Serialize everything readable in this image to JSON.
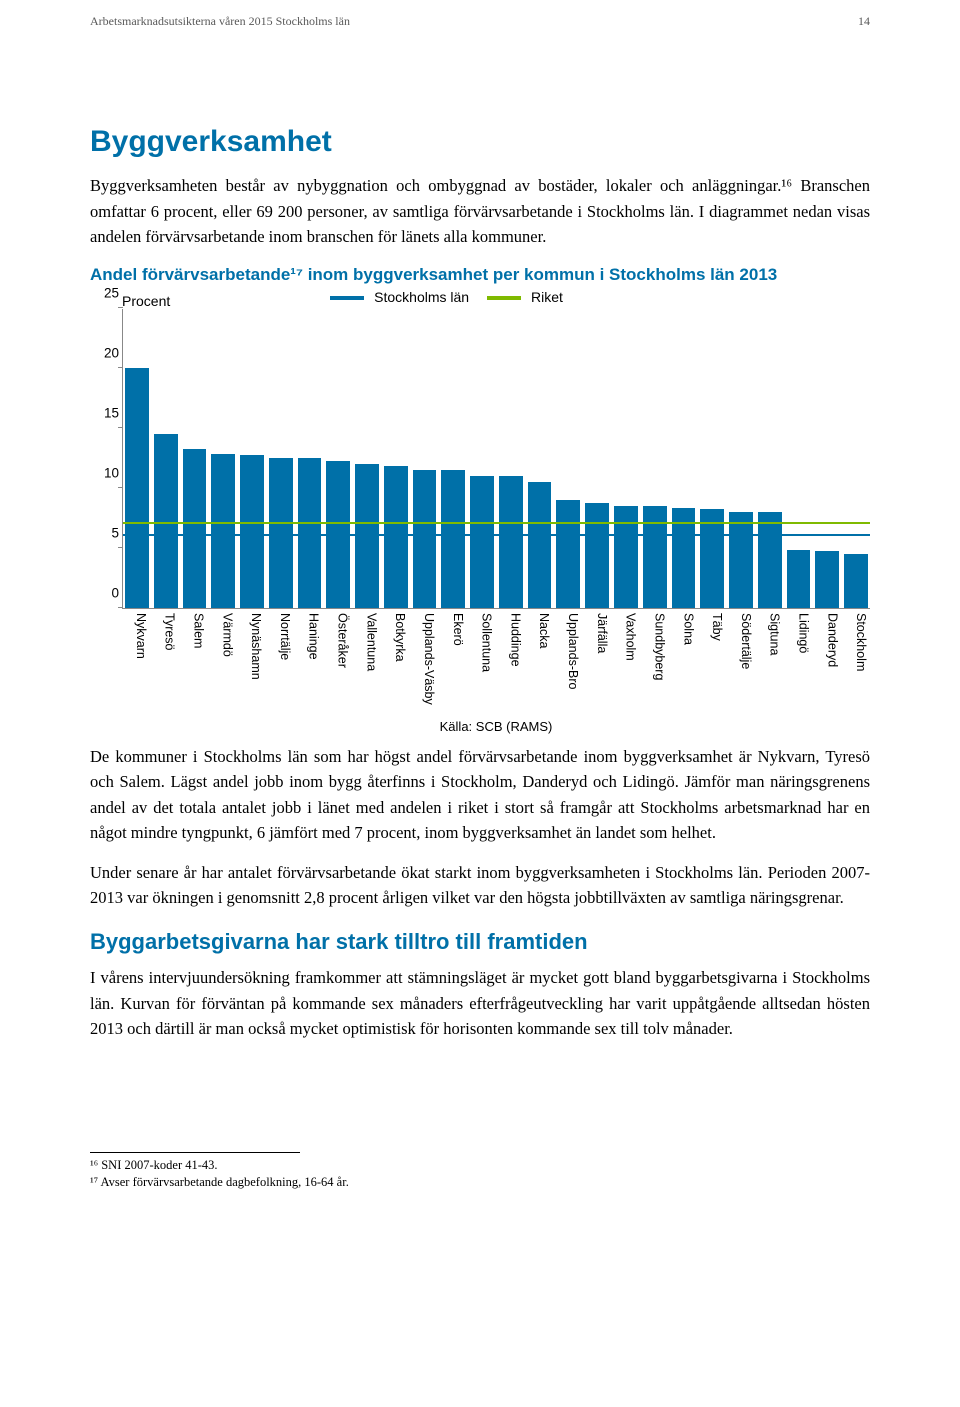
{
  "header": {
    "running_title": "Arbetsmarknadsutsikterna våren 2015 Stockholms län",
    "page_number": "14"
  },
  "section": {
    "title": "Byggverksamhet",
    "intro": "Byggverksamheten består av nybyggnation och ombyggnad av bostäder, lokaler och anläggningar.¹⁶ Branschen omfattar 6 procent, eller 69 200 personer, av samtliga förvärvsarbetande i Stockholms län. I diagrammet nedan visas andelen förvärvsarbetande inom branschen för länets alla kommuner."
  },
  "chart": {
    "title_line": "Andel förvärvsarbetande¹⁷ inom byggverksamhet per kommun i Stockholms län 2013",
    "type": "bar",
    "y_axis_label": "Procent",
    "legend": [
      {
        "label": "Stockholms län",
        "color": "#0070a8"
      },
      {
        "label": "Riket",
        "color": "#7fba00"
      }
    ],
    "ylim": [
      0,
      25
    ],
    "ytick_step": 5,
    "yticks": [
      0,
      5,
      10,
      15,
      20,
      25
    ],
    "bar_color": "#0070a8",
    "background_color": "#ffffff",
    "axis_color": "#808080",
    "reference_lines": [
      {
        "value": 7,
        "color": "#7fba00"
      },
      {
        "value": 6,
        "color": "#0070a8"
      }
    ],
    "categories": [
      "Nykvarn",
      "Tyresö",
      "Salem",
      "Värmdö",
      "Nynäshamn",
      "Norrtälje",
      "Haninge",
      "Österåker",
      "Vallentuna",
      "Botkyrka",
      "Upplands-Väsby",
      "Ekerö",
      "Sollentuna",
      "Huddinge",
      "Nacka",
      "Upplands-Bro",
      "Järfälla",
      "Vaxholm",
      "Sundbyberg",
      "Solna",
      "Täby",
      "Södertälje",
      "Sigtuna",
      "Lidingö",
      "Danderyd",
      "Stockholm"
    ],
    "values": [
      20.0,
      14.5,
      13.2,
      12.8,
      12.7,
      12.5,
      12.5,
      12.2,
      12.0,
      11.8,
      11.5,
      11.5,
      11.0,
      11.0,
      10.5,
      9.0,
      8.7,
      8.5,
      8.5,
      8.3,
      8.2,
      8.0,
      8.0,
      4.8,
      4.7,
      4.5
    ],
    "source": "Källa: SCB (RAMS)"
  },
  "paragraphs": {
    "p1": "De kommuner i Stockholms län som har högst andel förvärvsarbetande inom byggverksamhet är Nykvarn, Tyresö och Salem. Lägst andel jobb inom bygg återfinns i Stockholm, Danderyd och Lidingö. Jämför man näringsgrenens andel av det totala antalet jobb i länet med andelen i riket i stort så framgår att Stockholms arbetsmarknad har en något mindre tyngpunkt, 6 jämfört med 7 procent, inom byggverksamhet än landet som helhet.",
    "p2": "Under senare år har antalet förvärvsarbetande ökat starkt inom byggverksamheten i Stockholms län. Perioden 2007-2013 var ökningen i genomsnitt 2,8 procent årligen vilket var den högsta jobbtillväxten av samtliga näringsgrenar."
  },
  "subsection": {
    "title": "Byggarbetsgivarna har stark tilltro till framtiden",
    "body": "I vårens intervjuundersökning framkommer att stämningsläget är mycket gott bland byggarbetsgivarna i Stockholms län. Kurvan för förväntan på kommande sex månaders efterfrågeutveckling har varit uppåtgående alltsedan hösten 2013 och därtill är man också mycket optimistisk för horisonten kommande sex till tolv månader."
  },
  "footnotes": {
    "fn16": "¹⁶ SNI 2007-koder 41-43.",
    "fn17": "¹⁷ Avser förvärvsarbetande dagbefolkning, 16-64 år."
  }
}
